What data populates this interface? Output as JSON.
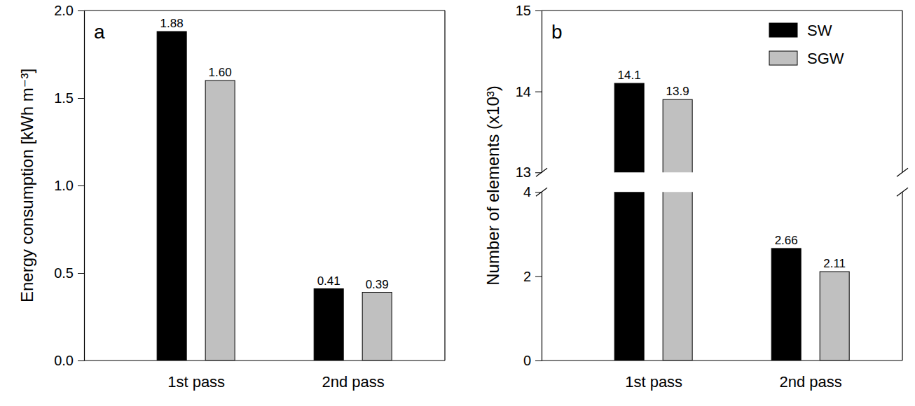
{
  "chart_data": [
    {
      "type": "bar",
      "title": "a",
      "ylabel": "Energy consumption [kWh m⁻³]",
      "categories": [
        "1st pass",
        "2nd pass"
      ],
      "series": [
        {
          "color": "#000000",
          "values": [
            1.88,
            0.41
          ],
          "value_labels": [
            "1.88",
            "0.41"
          ]
        },
        {
          "color": "#c0c0c0",
          "values": [
            1.6,
            0.39
          ],
          "value_labels": [
            "1.60",
            "0.39"
          ]
        }
      ],
      "ylim": [
        0,
        2
      ],
      "yticks": [
        {
          "value": 0,
          "label": "0.0"
        },
        {
          "value": 0.5,
          "label": "0.5"
        },
        {
          "value": 1,
          "label": "1.0"
        },
        {
          "value": 1.5,
          "label": "1.5"
        },
        {
          "value": 2,
          "label": "2.0"
        }
      ],
      "data_labels": true
    },
    {
      "type": "bar",
      "title": "b",
      "ylabel": "Number of elements (x10³)",
      "categories": [
        "1st pass",
        "2nd pass"
      ],
      "series": [
        {
          "name": "SW",
          "color": "#000000",
          "values": [
            14.1,
            2.66
          ]
        },
        {
          "name": "SGW",
          "color": "#c0c0c0",
          "values": [
            13.9,
            2.11
          ]
        }
      ],
      "ylim": [
        [
          0,
          4
        ],
        [
          13,
          15
        ]
      ],
      "yticks": [
        0,
        2,
        4,
        13,
        14,
        15
      ],
      "legend": "upper right",
      "data_labels": true
    }
  ]
}
